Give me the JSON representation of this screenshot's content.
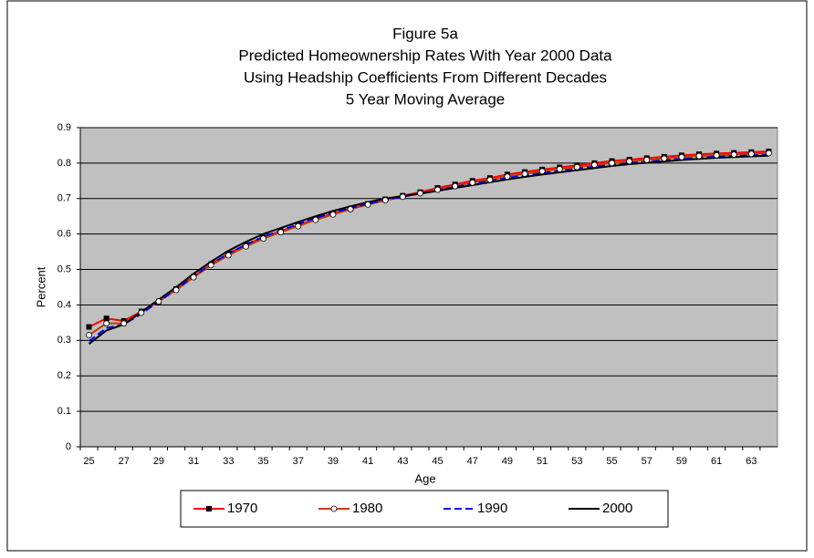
{
  "chart_data": {
    "type": "line",
    "title": [
      "Figure 5a",
      "Predicted Homeownership Rates With Year 2000 Data",
      "Using Headship Coefficients From Different Decades",
      "5 Year Moving Average"
    ],
    "x_label": "Age",
    "y_label": "Percent",
    "categories": [
      25,
      null,
      27,
      null,
      29,
      null,
      31,
      null,
      33,
      null,
      35,
      null,
      37,
      null,
      39,
      null,
      41,
      null,
      43,
      null,
      45,
      null,
      47,
      null,
      49,
      null,
      51,
      null,
      53,
      null,
      55,
      null,
      57,
      null,
      59,
      null,
      61,
      null,
      63,
      null
    ],
    "ylim": [
      0,
      0.9
    ],
    "yticks": [
      0,
      0.1,
      0.2,
      0.3,
      0.4,
      0.5,
      0.6,
      0.7,
      0.8,
      0.9
    ],
    "grid": true,
    "background": "#c0c0c0",
    "legend": "bottom",
    "series": [
      {
        "name": "1970",
        "color": "#ff0000",
        "marker": "square",
        "line_style": "solid",
        "values": [
          0.338,
          0.362,
          0.355,
          0.382,
          0.41,
          0.445,
          0.48,
          0.515,
          0.545,
          0.57,
          0.59,
          0.608,
          0.625,
          0.642,
          0.658,
          0.672,
          0.685,
          0.698,
          0.708,
          0.718,
          0.73,
          0.74,
          0.75,
          0.758,
          0.768,
          0.775,
          0.782,
          0.788,
          0.794,
          0.8,
          0.806,
          0.81,
          0.814,
          0.818,
          0.822,
          0.825,
          0.827,
          0.829,
          0.831,
          0.833
        ]
      },
      {
        "name": "1980",
        "color": "#c04000",
        "marker": "circle",
        "line_style": "solid",
        "values": [
          0.315,
          0.348,
          0.348,
          0.378,
          0.41,
          0.442,
          0.478,
          0.512,
          0.54,
          0.565,
          0.587,
          0.605,
          0.622,
          0.64,
          0.655,
          0.67,
          0.683,
          0.695,
          0.705,
          0.715,
          0.725,
          0.735,
          0.745,
          0.753,
          0.762,
          0.77,
          0.777,
          0.783,
          0.789,
          0.795,
          0.8,
          0.805,
          0.809,
          0.813,
          0.817,
          0.82,
          0.822,
          0.824,
          0.826,
          0.828
        ]
      },
      {
        "name": "1990",
        "color": "#0000ff",
        "marker": "none",
        "line_style": "dashed",
        "values": [
          0.298,
          0.335,
          0.345,
          0.375,
          0.41,
          0.444,
          0.48,
          0.515,
          0.545,
          0.57,
          0.592,
          0.61,
          0.628,
          0.645,
          0.66,
          0.673,
          0.685,
          0.697,
          0.705,
          0.714,
          0.724,
          0.733,
          0.742,
          0.75,
          0.758,
          0.765,
          0.772,
          0.778,
          0.784,
          0.79,
          0.795,
          0.8,
          0.804,
          0.808,
          0.812,
          0.815,
          0.818,
          0.82,
          0.822,
          0.824
        ]
      },
      {
        "name": "2000",
        "color": "#000000",
        "marker": "none",
        "line_style": "solid",
        "values": [
          0.29,
          0.328,
          0.345,
          0.38,
          0.415,
          0.45,
          0.488,
          0.522,
          0.553,
          0.578,
          0.6,
          0.617,
          0.634,
          0.65,
          0.665,
          0.678,
          0.69,
          0.7,
          0.707,
          0.714,
          0.722,
          0.73,
          0.738,
          0.746,
          0.754,
          0.761,
          0.768,
          0.774,
          0.78,
          0.786,
          0.792,
          0.797,
          0.801,
          0.805,
          0.809,
          0.812,
          0.815,
          0.817,
          0.819,
          0.821
        ]
      }
    ]
  }
}
